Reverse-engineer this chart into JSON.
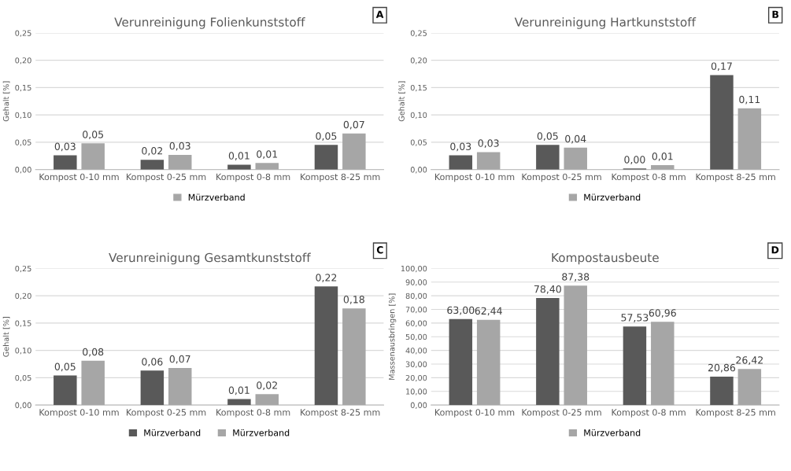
{
  "chart_data": [
    {
      "type": "bar",
      "title": "Verunreinigung Folienkunststoff",
      "ylabel": "Gehalt [%]",
      "annotations": [
        "A"
      ],
      "categories": [
        "Kompost 0-10 mm",
        "Kompost 0-25 mm",
        "Kompost 0-8 mm",
        "Kompost 8-25 mm"
      ],
      "series": [
        {
          "color": "#595959",
          "values": [
            0.026,
            0.018,
            0.009,
            0.045
          ],
          "value_labels": [
            "0,03",
            "0,02",
            "0,01",
            "0,05"
          ]
        },
        {
          "name": "Mürzverband",
          "color": "#a6a6a6",
          "values": [
            0.048,
            0.027,
            0.012,
            0.066
          ],
          "value_labels": [
            "0,05",
            "0,03",
            "0,01",
            "0,07"
          ]
        }
      ],
      "ylim": [
        0,
        0.25
      ],
      "yticks": [
        {
          "value": 0,
          "label": "0,00"
        },
        {
          "value": 0.05,
          "label": "0,05"
        },
        {
          "value": 0.1,
          "label": "0,10"
        },
        {
          "value": 0.15,
          "label": "0,15"
        },
        {
          "value": 0.2,
          "label": "0,20"
        },
        {
          "value": 0.25,
          "label": "0,25"
        }
      ],
      "grid": "y",
      "legend": "bottom"
    },
    {
      "type": "bar",
      "title": "Verunreinigung Hartkunststoff",
      "ylabel": "Gehalt [%]",
      "annotations": [
        "B"
      ],
      "categories": [
        "Kompost 0-10 mm",
        "Kompost 0-25 mm",
        "Kompost 0-8 mm",
        "Kompost 8-25 mm"
      ],
      "series": [
        {
          "color": "#595959",
          "values": [
            0.026,
            0.045,
            0.002,
            0.173
          ],
          "value_labels": [
            "0,03",
            "0,05",
            "0,00",
            "0,17"
          ]
        },
        {
          "name": "Mürzverband",
          "color": "#a6a6a6",
          "values": [
            0.032,
            0.04,
            0.008,
            0.112
          ],
          "value_labels": [
            "0,03",
            "0,04",
            "0,01",
            "0,11"
          ]
        }
      ],
      "ylim": [
        0,
        0.25
      ],
      "yticks": [
        {
          "value": 0,
          "label": "0,00"
        },
        {
          "value": 0.05,
          "label": "0,05"
        },
        {
          "value": 0.1,
          "label": "0,10"
        },
        {
          "value": 0.15,
          "label": "0,15"
        },
        {
          "value": 0.2,
          "label": "0,20"
        },
        {
          "value": 0.25,
          "label": "0,25"
        }
      ],
      "grid": "y",
      "legend": "bottom"
    },
    {
      "type": "bar",
      "title": "Verunreinigung Gesamtkunststoff",
      "ylabel": "Gehalt [%]",
      "annotations": [
        "C"
      ],
      "categories": [
        "Kompost 0-10 mm",
        "Kompost 0-25 mm",
        "Kompost 0-8 mm",
        "Kompost 8-25 mm"
      ],
      "series": [
        {
          "name": "Mürzverband",
          "color": "#595959",
          "values": [
            0.054,
            0.063,
            0.011,
            0.217
          ],
          "value_labels": [
            "0,05",
            "0,06",
            "0,01",
            "0,22"
          ]
        },
        {
          "name": "Mürzverband",
          "color": "#a6a6a6",
          "values": [
            0.081,
            0.068,
            0.02,
            0.177
          ],
          "value_labels": [
            "0,08",
            "0,07",
            "0,02",
            "0,18"
          ]
        }
      ],
      "ylim": [
        0,
        0.25
      ],
      "yticks": [
        {
          "value": 0,
          "label": "0,00"
        },
        {
          "value": 0.05,
          "label": "0,05"
        },
        {
          "value": 0.1,
          "label": "0,10"
        },
        {
          "value": 0.15,
          "label": "0,15"
        },
        {
          "value": 0.2,
          "label": "0,20"
        },
        {
          "value": 0.25,
          "label": "0,25"
        }
      ],
      "grid": "y",
      "legend": "bottom"
    },
    {
      "type": "bar",
      "title": "Kompostausbeute",
      "ylabel": "Massenausbringen [%]",
      "annotations": [
        "D"
      ],
      "categories": [
        "Kompost 0-10 mm",
        "Kompost 0-25 mm",
        "Kompost 0-8 mm",
        "Kompost 8-25 mm"
      ],
      "series": [
        {
          "color": "#595959",
          "values": [
            63.0,
            78.4,
            57.53,
            20.86
          ],
          "value_labels": [
            "63,00",
            "78,40",
            "57,53",
            "20,86"
          ]
        },
        {
          "name": "Mürzverband",
          "color": "#a6a6a6",
          "values": [
            62.44,
            87.38,
            60.96,
            26.42
          ],
          "value_labels": [
            "62,44",
            "87,38",
            "60,96",
            "26,42"
          ]
        }
      ],
      "ylim": [
        0,
        100
      ],
      "yticks": [
        {
          "value": 0,
          "label": "0,00"
        },
        {
          "value": 10,
          "label": "10,00"
        },
        {
          "value": 20,
          "label": "20,00"
        },
        {
          "value": 30,
          "label": "30,00"
        },
        {
          "value": 40,
          "label": "40,00"
        },
        {
          "value": 50,
          "label": "50,00"
        },
        {
          "value": 60,
          "label": "60,00"
        },
        {
          "value": 70,
          "label": "70,00"
        },
        {
          "value": 80,
          "label": "80,00"
        },
        {
          "value": 90,
          "label": "90,00"
        },
        {
          "value": 100,
          "label": "100,00"
        }
      ],
      "grid": "y",
      "legend": "bottom"
    }
  ]
}
